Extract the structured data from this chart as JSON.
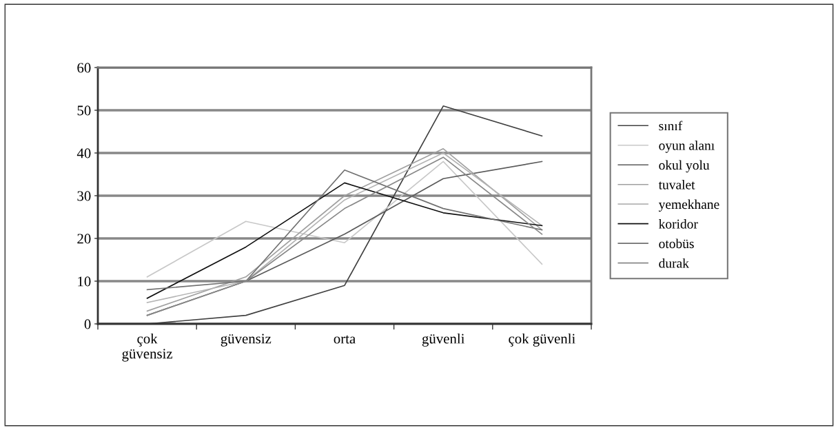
{
  "chart_data": {
    "type": "line",
    "categories": [
      "çok\ngüvensiz",
      "güvensiz",
      "orta",
      "güvenli",
      "çok güvenli"
    ],
    "ylim": [
      0,
      60
    ],
    "yticks": [
      0,
      10,
      20,
      30,
      40,
      50,
      60
    ],
    "grid": "y",
    "legend": "right",
    "marker": "none",
    "line_style": "solid",
    "series": [
      {
        "name": "sınıf",
        "color": "#404040",
        "values": [
          0,
          2,
          9,
          51,
          44
        ]
      },
      {
        "name": "oyun alanı",
        "color": "#c8c8c8",
        "values": [
          11,
          24,
          19,
          38,
          14
        ]
      },
      {
        "name": "okul yolu",
        "color": "#5a5a5a",
        "values": [
          2,
          10,
          21,
          34,
          38
        ]
      },
      {
        "name": "tuvalet",
        "color": "#a0a0a0",
        "values": [
          3,
          11,
          30,
          41,
          22
        ]
      },
      {
        "name": "yemekhane",
        "color": "#b4b4b4",
        "values": [
          5,
          10,
          29,
          40,
          23
        ]
      },
      {
        "name": "koridor",
        "color": "#101010",
        "values": [
          6,
          18,
          33,
          26,
          23
        ]
      },
      {
        "name": "otobüs",
        "color": "#707070",
        "values": [
          8,
          10,
          36,
          27,
          22
        ]
      },
      {
        "name": "durak",
        "color": "#888888",
        "values": [
          2,
          10,
          27,
          39,
          21
        ]
      }
    ]
  }
}
